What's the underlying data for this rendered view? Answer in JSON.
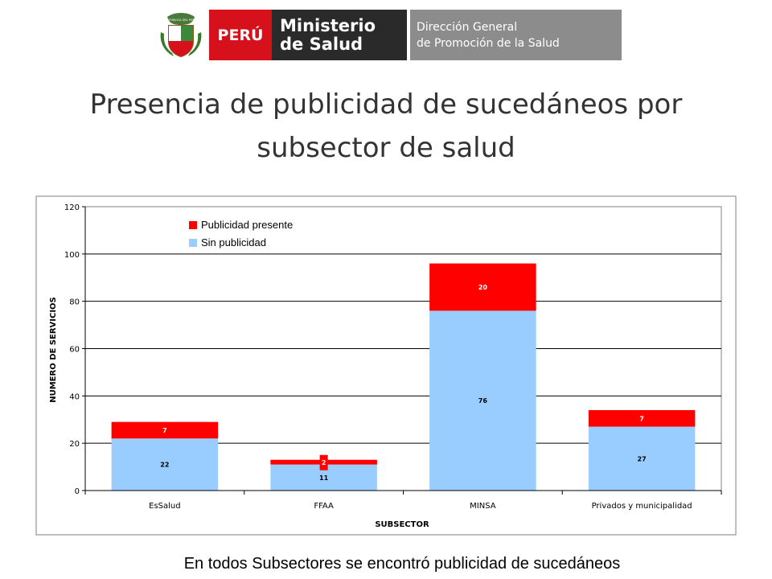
{
  "header": {
    "seal_caption": "REPÚBLICA DEL PERÚ",
    "country": "PERÚ",
    "ministry_line1": "Ministerio",
    "ministry_line2": "de Salud",
    "direction_line1": "Dirección General",
    "direction_line2": "de Promoción de la Salud"
  },
  "title": {
    "line1": "Presencia de publicidad de sucedáneos por",
    "line2": "subsector de salud"
  },
  "chart_data": {
    "type": "bar",
    "stacked": true,
    "categories": [
      "EsSalud",
      "FFAA",
      "MINSA",
      "Privados y municipalidad"
    ],
    "series": [
      {
        "name": "Sin publicidad",
        "values": [
          22,
          11,
          76,
          27
        ],
        "color": "#99ccff"
      },
      {
        "name": "Publicidad presente",
        "values": [
          7,
          2,
          20,
          7
        ],
        "color": "#ff0000"
      }
    ],
    "xlabel": "SUBSECTOR",
    "ylabel": "NUMERO DE SERVICIOS",
    "ylim": [
      0,
      120
    ],
    "yticks": [
      0,
      20,
      40,
      60,
      80,
      100,
      120
    ],
    "grid": true,
    "legend": "top-left"
  },
  "footer": {
    "text": "En todos Subsectores  se encontró publicidad  de sucedáneos"
  }
}
